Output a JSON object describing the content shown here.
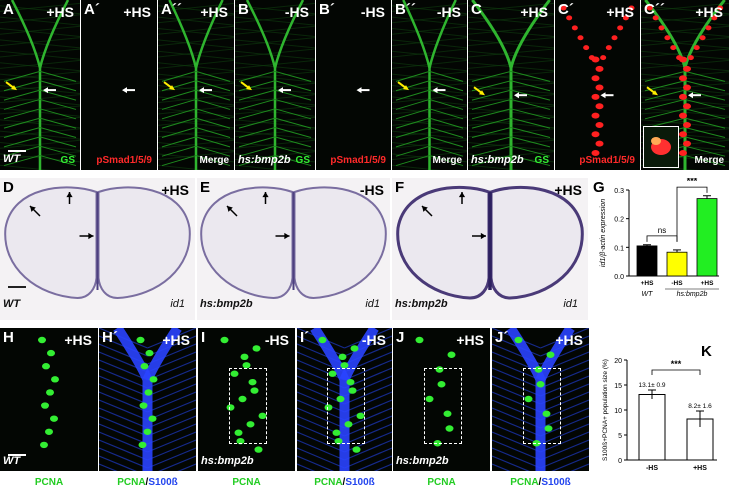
{
  "row1": [
    {
      "id": "A",
      "label": "A",
      "hs": "+HS",
      "corner": "GS",
      "corner_color": "green",
      "genotype": "WT"
    },
    {
      "id": "A1",
      "label": "A´",
      "hs": "+HS",
      "corner": "pSmad1/5/9",
      "corner_color": "red",
      "genotype": ""
    },
    {
      "id": "A2",
      "label": "A´´",
      "hs": "+HS",
      "corner": "Merge",
      "corner_color": "white",
      "genotype": ""
    },
    {
      "id": "B",
      "label": "B",
      "hs": "-HS",
      "corner": "GS",
      "corner_color": "green",
      "genotype": "hs:bmp2b"
    },
    {
      "id": "B1",
      "label": "B´",
      "hs": "-HS",
      "corner": "pSmad1/5/9",
      "corner_color": "red",
      "genotype": ""
    },
    {
      "id": "B2",
      "label": "B´´",
      "hs": "-HS",
      "corner": "Merge",
      "corner_color": "white",
      "genotype": ""
    },
    {
      "id": "C",
      "label": "C",
      "hs": "+HS",
      "corner": "GS",
      "corner_color": "green",
      "genotype": "hs:bmp2b"
    },
    {
      "id": "C1",
      "label": "C´",
      "hs": "+HS",
      "corner": "pSmad1/5/9",
      "corner_color": "red",
      "genotype": ""
    },
    {
      "id": "C2",
      "label": "C´´",
      "hs": "+HS",
      "corner": "Merge",
      "corner_color": "white",
      "genotype": ""
    }
  ],
  "row2": [
    {
      "id": "D",
      "label": "D",
      "hs": "+HS",
      "genotype": "WT",
      "marker": "id1"
    },
    {
      "id": "E",
      "label": "E",
      "hs": "-HS",
      "genotype": "hs:bmp2b",
      "marker": "id1"
    },
    {
      "id": "F",
      "label": "F",
      "hs": "+HS",
      "genotype": "hs:bmp2b",
      "marker": "id1"
    }
  ],
  "row3": [
    {
      "id": "H",
      "label": "H",
      "hs": "+HS",
      "genotype": "WT",
      "bottom": "PCNA"
    },
    {
      "id": "H1",
      "label": "H´",
      "hs": "+HS",
      "genotype": "",
      "bottom": "PCNA/S100ß"
    },
    {
      "id": "I",
      "label": "I",
      "hs": "-HS",
      "genotype": "hs:bmp2b",
      "bottom": "PCNA"
    },
    {
      "id": "I1",
      "label": "I´",
      "hs": "-HS",
      "genotype": "",
      "bottom": "PCNA/S100ß"
    },
    {
      "id": "J",
      "label": "J",
      "hs": "+HS",
      "genotype": "hs:bmp2b",
      "bottom": "PCNA"
    },
    {
      "id": "J1",
      "label": "J´",
      "hs": "+HS",
      "genotype": "",
      "bottom": "PCNA/S100ß"
    }
  ],
  "chart_G": {
    "panel_label": "G",
    "type": "bar",
    "ylabel": "id1/β-actin expression",
    "ylim": [
      0,
      0.3
    ],
    "yticks": [
      "0.0",
      "0.1",
      "0.2",
      "0.3"
    ],
    "categories": [
      "+HS",
      "-HS",
      "+HS"
    ],
    "values": [
      0.105,
      0.083,
      0.27
    ],
    "errors": [
      0.004,
      0.008,
      0.01
    ],
    "colors": [
      "#000000",
      "#ffff00",
      "#22ee22"
    ],
    "group_labels": [
      "WT",
      "hs:bmp2b"
    ],
    "significance": [
      "ns",
      "***"
    ]
  },
  "chart_K": {
    "panel_label": "K",
    "type": "bar",
    "ylabel": "S100ß+PCNA+ population size (%)",
    "ylim": [
      0,
      20
    ],
    "yticks": [
      "0",
      "5",
      "10",
      "15",
      "20"
    ],
    "categories": [
      "-HS",
      "+HS"
    ],
    "values": [
      13.1,
      8.2
    ],
    "errors": [
      0.9,
      1.6
    ],
    "value_labels": [
      "13.1± 0.9",
      "8.2± 1.6"
    ],
    "colors": [
      "#ffffff",
      "#ffffff"
    ],
    "significance": "***"
  }
}
